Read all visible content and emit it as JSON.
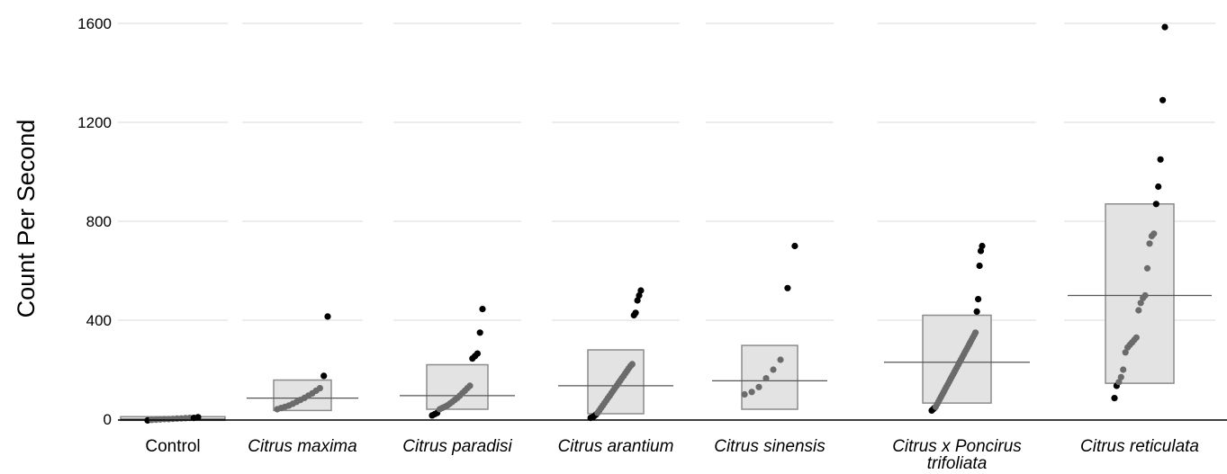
{
  "chart_data": {
    "type": "scatter",
    "ylabel": "Count Per Second",
    "xlabel": "",
    "ylim": [
      0,
      1600
    ],
    "yticks": [
      0,
      400,
      800,
      1200,
      1600
    ],
    "grid": true,
    "categories": [
      {
        "label": "Control",
        "italic": false
      },
      {
        "label": "Citrus maxima",
        "italic": true
      },
      {
        "label": "Citrus paradisi",
        "italic": true
      },
      {
        "label": "Citrus arantium",
        "italic": true
      },
      {
        "label": "Citrus sinensis",
        "italic": true
      },
      {
        "label": "Citrus x Poncirus trifoliata",
        "italic": true
      },
      {
        "label": "Citrus reticulata",
        "italic": true
      }
    ],
    "groups": [
      {
        "category": "Control",
        "mean": 0,
        "box": [
          -5,
          10
        ],
        "inliers": [
          -3,
          -2,
          -1,
          0,
          0,
          1,
          2,
          3,
          4,
          5
        ],
        "outliers": [
          -5,
          5,
          8
        ]
      },
      {
        "category": "Citrus maxima",
        "mean": 85,
        "box": [
          35,
          158
        ],
        "inliers": [
          40,
          45,
          50,
          55,
          62,
          70,
          78,
          86,
          95,
          104,
          115,
          125
        ],
        "outliers": [
          175,
          415
        ]
      },
      {
        "category": "Citrus paradisi",
        "mean": 95,
        "box": [
          40,
          220
        ],
        "inliers": [
          40,
          45,
          50,
          55,
          62,
          70,
          78,
          86,
          95,
          105,
          115,
          125,
          135
        ],
        "outliers": [
          15,
          20,
          25,
          245,
          255,
          265,
          350,
          445
        ]
      },
      {
        "category": "Citrus arantium",
        "mean": 135,
        "box": [
          22,
          280
        ],
        "inliers": [
          25,
          35,
          45,
          55,
          65,
          75,
          85,
          95,
          105,
          115,
          125,
          135,
          145,
          155,
          165,
          175,
          185,
          195,
          205,
          215,
          222
        ],
        "outliers": [
          5,
          8,
          12,
          18,
          420,
          430,
          480,
          500,
          520
        ]
      },
      {
        "category": "Citrus sinensis",
        "mean": 155,
        "box": [
          40,
          298
        ],
        "inliers": [
          100,
          110,
          130,
          165,
          200,
          240
        ],
        "outliers": [
          530,
          700
        ]
      },
      {
        "category": "Citrus x Poncirus trifoliata",
        "mean": 230,
        "box": [
          65,
          420
        ],
        "inliers": [
          50,
          60,
          70,
          80,
          90,
          100,
          110,
          120,
          130,
          140,
          150,
          160,
          170,
          180,
          190,
          200,
          210,
          220,
          230,
          240,
          250,
          260,
          270,
          280,
          290,
          300,
          310,
          320,
          330,
          340,
          350
        ],
        "outliers": [
          35,
          40,
          45,
          435,
          485,
          620,
          680,
          700
        ]
      },
      {
        "category": "Citrus reticulata",
        "mean": 500,
        "box": [
          145,
          870
        ],
        "inliers": [
          150,
          170,
          200,
          270,
          290,
          300,
          310,
          320,
          330,
          440,
          470,
          490,
          500,
          610,
          710,
          740,
          750
        ],
        "outliers": [
          85,
          135,
          870,
          940,
          1050,
          1290,
          1585
        ]
      }
    ],
    "colors": {
      "box_fill": "#e3e3e3",
      "box_stroke": "#8c8c8c",
      "inlier": "#6b6b6b",
      "outlier": "#000000",
      "grid": "#d9d9d9",
      "mean_line": "#555555"
    }
  }
}
